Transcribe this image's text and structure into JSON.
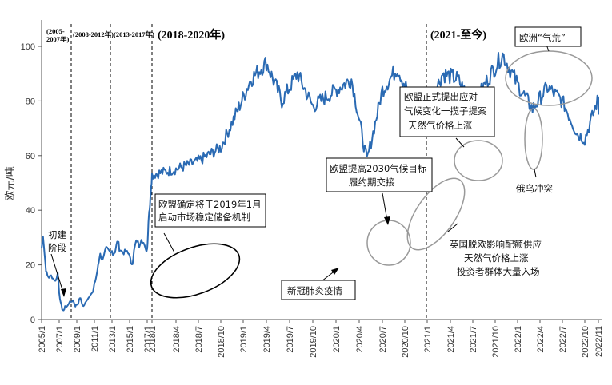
{
  "chart_data": {
    "type": "line",
    "ylabel": "欧元/吨",
    "xlabel": "",
    "ylim": [
      0,
      110
    ],
    "yticks": [
      0,
      20,
      40,
      60,
      80,
      100
    ],
    "xlim": [
      "2005/1",
      "2022/11"
    ],
    "xticks": [
      "2005/1",
      "2007/1",
      "2009/1",
      "2011/1",
      "2013/1",
      "2015/1",
      "2017/1",
      "2018/1",
      "2018/4",
      "2018/7",
      "2018/10",
      "2019/1",
      "2019/4",
      "2019/7",
      "2019/10",
      "2020/1",
      "2020/4",
      "2020/7",
      "2020/10",
      "2021/1",
      "2021/4",
      "2021/7",
      "2021/10",
      "2022/1",
      "2022/4",
      "2022/7",
      "2022/10",
      "2022/11"
    ],
    "grid": false,
    "line_color": "#2a6ab3",
    "series": [
      {
        "name": "",
        "points": [
          [
            "2005/1",
            26
          ],
          [
            "2005/3",
            31
          ],
          [
            "2005/5",
            24
          ],
          [
            "2005/7",
            18
          ],
          [
            "2005/9",
            16
          ],
          [
            "2005/11",
            15.5
          ],
          [
            "2006/2",
            16
          ],
          [
            "2006/5",
            15
          ],
          [
            "2006/8",
            14
          ],
          [
            "2006/11",
            17
          ],
          [
            "2007/1",
            10
          ],
          [
            "2007/3",
            6
          ],
          [
            "2007/5",
            4
          ],
          [
            "2007/7",
            3
          ],
          [
            "2007/9",
            5
          ],
          [
            "2007/11",
            4.5
          ],
          [
            "2008/2",
            6
          ],
          [
            "2008/5",
            6.5
          ],
          [
            "2008/8",
            7
          ],
          [
            "2008/11",
            5
          ],
          [
            "2009/1",
            5.5
          ],
          [
            "2009/3",
            6
          ],
          [
            "2009/5",
            8
          ],
          [
            "2009/7",
            7
          ],
          [
            "2009/9",
            5
          ],
          [
            "2009/11",
            5
          ],
          [
            "2010/2",
            7
          ],
          [
            "2010/5",
            8
          ],
          [
            "2010/8",
            9.5
          ],
          [
            "2010/11",
            10
          ],
          [
            "2011/1",
            13
          ],
          [
            "2011/3",
            15
          ],
          [
            "2011/5",
            18
          ],
          [
            "2011/7",
            21
          ],
          [
            "2011/9",
            24.5
          ],
          [
            "2011/11",
            21.5
          ],
          [
            "2012/2",
            24
          ],
          [
            "2012/5",
            26
          ],
          [
            "2012/8",
            25
          ],
          [
            "2012/11",
            24
          ],
          [
            "2013/1",
            25
          ],
          [
            "2013/3",
            24
          ],
          [
            "2013/5",
            25
          ],
          [
            "2013/7",
            27
          ],
          [
            "2013/9",
            29
          ],
          [
            "2013/11",
            26
          ],
          [
            "2014/2",
            25
          ],
          [
            "2014/5",
            24.5
          ],
          [
            "2014/8",
            25
          ],
          [
            "2014/11",
            24
          ],
          [
            "2015/1",
            24
          ],
          [
            "2015/3",
            20
          ],
          [
            "2015/5",
            21
          ],
          [
            "2015/7",
            25
          ],
          [
            "2015/9",
            27.5
          ],
          [
            "2015/11",
            29
          ],
          [
            "2016/2",
            27
          ],
          [
            "2016/5",
            30
          ],
          [
            "2016/8",
            28
          ],
          [
            "2016/11",
            25
          ],
          [
            "2017/1",
            26
          ],
          [
            "2017/3",
            32
          ],
          [
            "2017/5",
            39
          ],
          [
            "2017/7",
            41
          ],
          [
            "2017/9",
            44
          ],
          [
            "2017/11",
            50
          ],
          [
            "2018/1",
            53
          ],
          [
            "2018/4",
            55
          ],
          [
            "2018/7",
            58
          ],
          [
            "2018/10",
            63
          ],
          [
            "2018/12",
            75
          ],
          [
            "2019/2",
            88
          ],
          [
            "2019/4",
            94
          ],
          [
            "2019/6",
            80
          ],
          [
            "2019/8",
            90
          ],
          [
            "2019/10",
            78
          ],
          [
            "2020/1",
            84
          ],
          [
            "2020/3",
            88
          ],
          [
            "2020/5",
            58
          ],
          [
            "2020/7",
            84
          ],
          [
            "2020/9",
            92
          ],
          [
            "2020/11",
            80
          ],
          [
            "2021/1",
            77
          ],
          [
            "2021/3",
            90
          ],
          [
            "2021/5",
            88
          ],
          [
            "2021/7",
            78
          ],
          [
            "2021/9",
            88
          ],
          [
            "2021/11",
            97
          ],
          [
            "2022/1",
            86
          ],
          [
            "2022/3",
            77
          ],
          [
            "2022/5",
            85
          ],
          [
            "2022/7",
            80
          ],
          [
            "2022/9",
            68
          ],
          [
            "2022/10",
            66
          ],
          [
            "2022/11",
            81
          ],
          [
            "2022/11",
            75
          ]
        ]
      }
    ],
    "phases": [
      {
        "label": "(2005-2007年)",
        "label_lines": [
          "(2005-",
          "2007年)"
        ]
      },
      {
        "label": "(2008-2012年)"
      },
      {
        "label": "(2013-2017年)"
      },
      {
        "label": "(2018-2020年)"
      },
      {
        "label": "(2021-至今)"
      }
    ],
    "annotations": [
      {
        "label": "初建阶段",
        "lines": [
          "初建",
          "阶段"
        ]
      },
      {
        "label": "欧盟确定将于2019年1月启动市场稳定储备机制",
        "lines": [
          "欧盟确定将于2019年1月",
          "启动市场稳定储备机制"
        ]
      },
      {
        "label": "新冠肺炎疫情",
        "lines": [
          "新冠肺炎疫情"
        ]
      },
      {
        "label": "欧盟提高2030气候目标履约期交接",
        "lines": [
          "欧盟提高2030气候目标",
          "履约期交接"
        ]
      },
      {
        "label": "欧盟正式提出应对气候变化一揽子提案天然气价格上涨",
        "lines": [
          "欧盟正式提出应对",
          "气候变化一揽子提案",
          "天然气价格上涨"
        ]
      },
      {
        "label": "英国脱欧影响配额供应天然气价格上涨投资者群体大量入场",
        "lines": [
          "英国脱欧影响配额供应",
          "天然气价格上涨",
          "投资者群体大量入场"
        ]
      },
      {
        "label": "欧洲“气荒”",
        "lines": [
          "欧洲“气荒”"
        ]
      },
      {
        "label": "俄乌冲突",
        "lines": [
          "俄乌冲突"
        ]
      }
    ]
  }
}
